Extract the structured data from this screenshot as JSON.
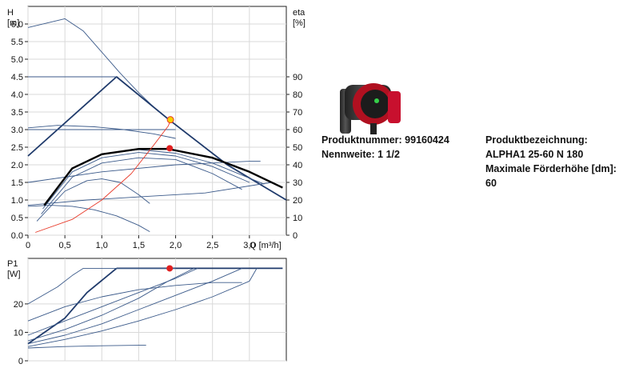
{
  "product_info": {
    "number_label": "Produktnummer: 99160424",
    "size_label": "Nennweite: 1 1/2",
    "designation_label": "Produktbezeichnung:",
    "designation_value": "ALPHA1 25-60 N 180",
    "max_head_label": "Maximale Förderhöhe [dm]:",
    "max_head_value": "60"
  },
  "product_image": {
    "name": "circulator-pump-photo",
    "body_color": "#3a3a3a",
    "accent_color": "#c8102e"
  },
  "chart_data": [
    {
      "type": "line",
      "title": "",
      "xlabel": "Q [m³/h]",
      "ylabel": "H\n[m]",
      "y2label": "eta\n[%]",
      "xlim": [
        0,
        3.5
      ],
      "ylim": [
        0,
        6.5
      ],
      "y2lim": [
        0,
        130
      ],
      "xticks": [
        "0",
        "0,5",
        "1,0",
        "1,5",
        "2,0",
        "2,5",
        "3,0"
      ],
      "yticks": [
        "0.0",
        "0.5",
        "1.0",
        "1.5",
        "2.0",
        "2.5",
        "3.0",
        "3.5",
        "4.0",
        "4.5",
        "5.0",
        "5.5",
        "6.0"
      ],
      "y2ticks": [
        "0",
        "10",
        "20",
        "30",
        "40",
        "50",
        "60",
        "70",
        "80",
        "90"
      ],
      "grid": true,
      "colors": {
        "curve": "#1f3a6b",
        "thin": "#3b5a8a",
        "bold": "#000000",
        "eff": "#e83a2a",
        "point": "#e02020",
        "marker": "#f5d000"
      },
      "series": [
        {
          "style": "thin",
          "x": [
            0,
            0.5,
            0.75,
            1.0,
            1.25,
            1.5,
            1.75,
            1.9
          ],
          "y": [
            5.9,
            6.15,
            5.8,
            5.2,
            4.6,
            4.05,
            3.55,
            3.3
          ]
        },
        {
          "style": "thick",
          "x": [
            0,
            1.2,
            1.9,
            2.7,
            3.5
          ],
          "y": [
            2.25,
            4.5,
            3.3,
            2.0,
            1.0
          ]
        },
        {
          "style": "thin",
          "x": [
            0,
            1.2
          ],
          "y": [
            4.5,
            4.5
          ]
        },
        {
          "style": "thin",
          "x": [
            0,
            2.0
          ],
          "y": [
            3.0,
            3.0
          ]
        },
        {
          "style": "thin",
          "x": [
            0,
            0.4,
            0.9,
            1.3,
            1.7,
            2.0
          ],
          "y": [
            3.05,
            3.12,
            3.08,
            3.0,
            2.88,
            2.75
          ]
        },
        {
          "style": "thin",
          "x": [
            0,
            1.0,
            2.0,
            3.0,
            3.15
          ],
          "y": [
            1.5,
            1.8,
            2.0,
            2.1,
            2.1
          ]
        },
        {
          "style": "thin",
          "x": [
            0,
            0.8,
            1.6,
            2.4,
            3.3
          ],
          "y": [
            0.85,
            1.0,
            1.1,
            1.2,
            1.5
          ]
        },
        {
          "style": "thin",
          "x": [
            0,
            0.3,
            0.6,
            0.9,
            1.2,
            1.5,
            1.65
          ],
          "y": [
            0.82,
            0.85,
            0.82,
            0.72,
            0.55,
            0.28,
            0.1
          ]
        },
        {
          "style": "thin",
          "x": [
            0.12,
            0.5,
            0.8,
            1.0,
            1.25,
            1.5,
            1.65
          ],
          "y": [
            0.4,
            1.25,
            1.55,
            1.6,
            1.5,
            1.15,
            0.9
          ]
        },
        {
          "style": "thin",
          "x": [
            0.18,
            0.6,
            1.0,
            1.5,
            2.0,
            2.5,
            2.9
          ],
          "y": [
            0.6,
            1.65,
            2.05,
            2.2,
            2.15,
            1.75,
            1.3
          ]
        },
        {
          "style": "thin",
          "x": [
            0.2,
            0.6,
            1.0,
            1.5,
            2.0,
            2.5,
            3.0
          ],
          "y": [
            0.75,
            1.8,
            2.2,
            2.35,
            2.25,
            1.95,
            1.5
          ]
        },
        {
          "style": "thin",
          "x": [
            0.22,
            0.6,
            1.0,
            1.5,
            2.0,
            2.5,
            3.2
          ],
          "y": [
            0.85,
            1.9,
            2.3,
            2.43,
            2.33,
            2.05,
            1.45
          ]
        },
        {
          "style": "bold",
          "x": [
            0.22,
            0.6,
            1.0,
            1.5,
            1.9,
            2.5,
            3.0,
            3.45
          ],
          "y": [
            0.85,
            1.9,
            2.3,
            2.45,
            2.45,
            2.2,
            1.8,
            1.35
          ]
        },
        {
          "style": "eff",
          "x": [
            0.1,
            0.6,
            1.0,
            1.4,
            1.7,
            1.9,
            1.95
          ],
          "y": [
            0.08,
            0.45,
            1.0,
            1.75,
            2.55,
            3.1,
            3.35
          ]
        }
      ],
      "points": [
        {
          "x": 1.92,
          "y": 2.47,
          "color": "point"
        },
        {
          "x": 1.93,
          "y": 3.28,
          "color": "marker"
        }
      ]
    },
    {
      "type": "line",
      "title": "",
      "ylabel": "P1\n[W]",
      "xlim": [
        0,
        3.5
      ],
      "ylim": [
        0,
        36
      ],
      "yticks": [
        "0",
        "10",
        "20"
      ],
      "grid": true,
      "series": [
        {
          "style": "thick",
          "x": [
            1.2,
            3.45
          ],
          "y": [
            32.5,
            32.5
          ]
        },
        {
          "style": "thick",
          "x": [
            0,
            0.5,
            0.8,
            1.2
          ],
          "y": [
            6,
            15,
            24,
            32.5
          ]
        },
        {
          "style": "thin",
          "x": [
            0,
            0.4,
            0.6,
            0.75,
            2.0
          ],
          "y": [
            20,
            26,
            30,
            32.5,
            32.5
          ]
        },
        {
          "style": "thin",
          "x": [
            0,
            0.5,
            1.0,
            1.5,
            2.0,
            2.5,
            2.9
          ],
          "y": [
            14,
            19,
            22.5,
            25,
            26.5,
            27.5,
            27.5
          ]
        },
        {
          "style": "thin",
          "x": [
            0,
            0.5,
            1.0,
            1.5,
            2.0,
            2.3
          ],
          "y": [
            9,
            14,
            19,
            24,
            29,
            32.5
          ]
        },
        {
          "style": "thin",
          "x": [
            0,
            0.5,
            1.0,
            1.5,
            1.9,
            2.25
          ],
          "y": [
            7,
            11,
            16,
            22,
            28,
            32.5
          ]
        },
        {
          "style": "thin",
          "x": [
            0,
            0.5,
            1.0,
            1.5,
            2.0,
            2.5,
            2.9
          ],
          "y": [
            6,
            9,
            13,
            18,
            23,
            28,
            32.5
          ]
        },
        {
          "style": "thin",
          "x": [
            0,
            0.5,
            1.0,
            1.5,
            2.0,
            2.5,
            3.0,
            3.1
          ],
          "y": [
            5,
            7.5,
            10.5,
            14,
            18,
            22.5,
            28,
            32.5
          ]
        },
        {
          "style": "thin",
          "x": [
            0,
            0.5,
            1.0,
            1.6
          ],
          "y": [
            4.5,
            5,
            5.3,
            5.5
          ]
        }
      ],
      "points": [
        {
          "x": 1.92,
          "y": 32.5,
          "color": "point"
        }
      ]
    }
  ]
}
